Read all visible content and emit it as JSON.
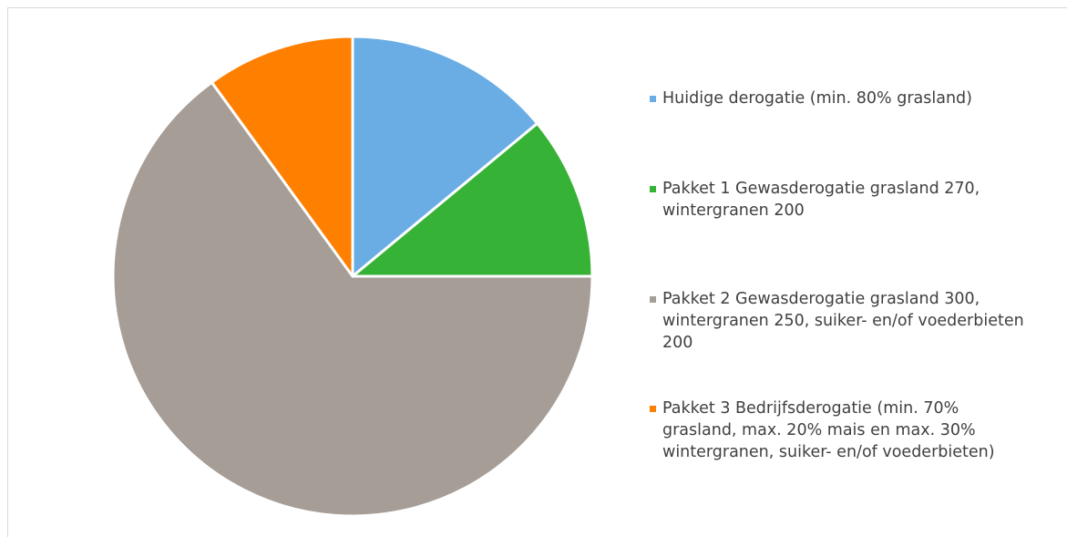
{
  "chart_data": {
    "type": "pie",
    "categories": [
      "Huidige derogatie (min. 80% grasland)",
      "Pakket 1 Gewasderogatie grasland 270, wintergranen 200",
      "Pakket 2 Gewasderogatie grasland 300, wintergranen 250, suiker- en/of voederbieten 200",
      "Pakket 3 Bedrijfsderogatie (min. 70% grasland, max. 20% mais en max. 30% wintergranen, suiker- en/of voederbieten)"
    ],
    "values": [
      14,
      11,
      65,
      10
    ],
    "colors": [
      "#6aade4",
      "#36b236",
      "#a69d96",
      "#ff7f00"
    ],
    "legend": "right"
  }
}
